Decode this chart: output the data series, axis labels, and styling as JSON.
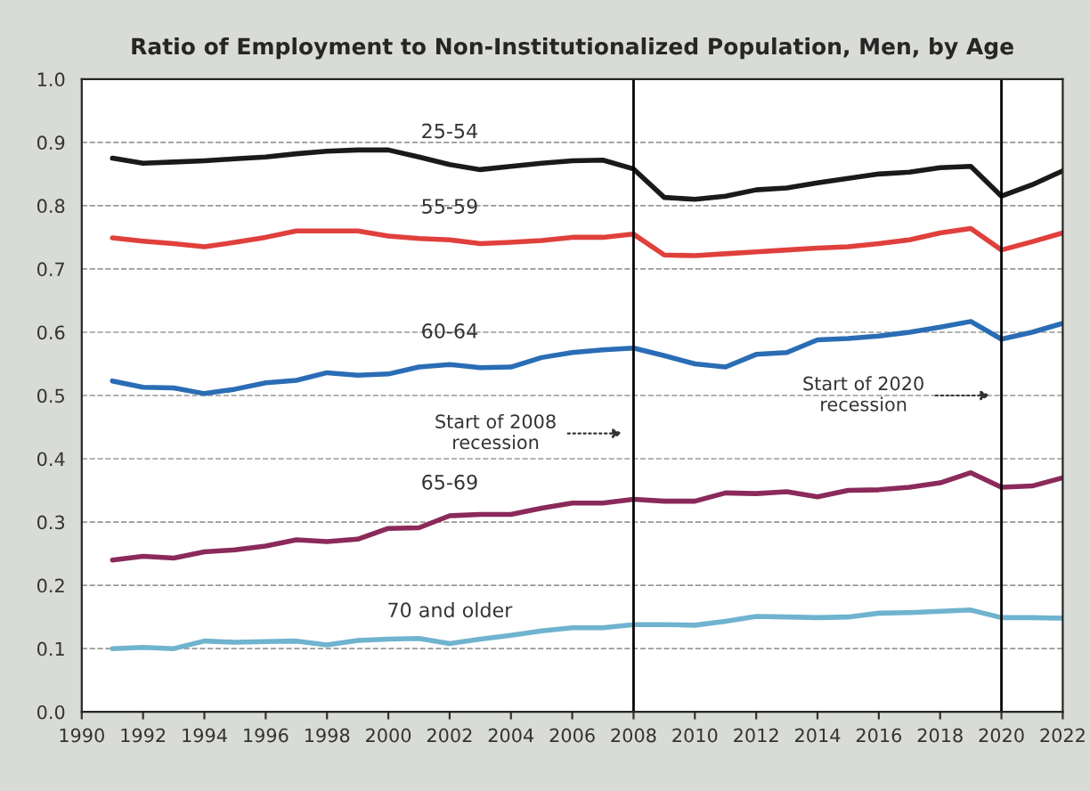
{
  "chart_data": {
    "type": "line",
    "title": "Ratio of Employment to Non-Institutionalized Population, Men, by Age",
    "x": [
      1991,
      1992,
      1993,
      1994,
      1995,
      1996,
      1997,
      1998,
      1999,
      2000,
      2001,
      2002,
      2003,
      2004,
      2005,
      2006,
      2007,
      2008,
      2009,
      2010,
      2011,
      2012,
      2013,
      2014,
      2015,
      2016,
      2017,
      2018,
      2019,
      2020,
      2021,
      2022
    ],
    "series": [
      {
        "name": "25-54",
        "color": "#1a1a1a",
        "values": [
          0.875,
          0.867,
          0.869,
          0.871,
          0.874,
          0.877,
          0.882,
          0.886,
          0.888,
          0.888,
          0.877,
          0.865,
          0.857,
          0.862,
          0.867,
          0.871,
          0.872,
          0.858,
          0.813,
          0.81,
          0.815,
          0.825,
          0.828,
          0.836,
          0.843,
          0.85,
          0.853,
          0.86,
          0.862,
          0.815,
          0.833,
          0.855
        ]
      },
      {
        "name": "55-59",
        "color": "#e0403c",
        "values": [
          0.749,
          0.744,
          0.74,
          0.735,
          0.742,
          0.75,
          0.76,
          0.76,
          0.76,
          0.752,
          0.748,
          0.746,
          0.74,
          0.742,
          0.745,
          0.75,
          0.75,
          0.755,
          0.722,
          0.721,
          0.724,
          0.727,
          0.73,
          0.733,
          0.735,
          0.74,
          0.746,
          0.757,
          0.764,
          0.73,
          0.743,
          0.757
        ]
      },
      {
        "name": "60-64",
        "color": "#2a6db5",
        "values": [
          0.523,
          0.513,
          0.512,
          0.503,
          0.51,
          0.52,
          0.524,
          0.536,
          0.532,
          0.534,
          0.545,
          0.549,
          0.544,
          0.545,
          0.56,
          0.568,
          0.572,
          0.575,
          0.563,
          0.55,
          0.545,
          0.565,
          0.568,
          0.588,
          0.59,
          0.594,
          0.6,
          0.608,
          0.617,
          0.589,
          0.6,
          0.614
        ]
      },
      {
        "name": "65-69",
        "color": "#8b2a5a",
        "values": [
          0.24,
          0.246,
          0.243,
          0.253,
          0.256,
          0.262,
          0.272,
          0.269,
          0.273,
          0.29,
          0.291,
          0.31,
          0.312,
          0.312,
          0.322,
          0.33,
          0.33,
          0.336,
          0.333,
          0.333,
          0.346,
          0.345,
          0.348,
          0.34,
          0.35,
          0.351,
          0.355,
          0.362,
          0.378,
          0.355,
          0.357,
          0.37
        ]
      },
      {
        "name": "70 and older",
        "color": "#6fb3cf",
        "values": [
          0.1,
          0.102,
          0.1,
          0.112,
          0.11,
          0.111,
          0.112,
          0.106,
          0.113,
          0.115,
          0.116,
          0.108,
          0.115,
          0.121,
          0.128,
          0.133,
          0.133,
          0.138,
          0.138,
          0.137,
          0.143,
          0.151,
          0.15,
          0.149,
          0.15,
          0.156,
          0.157,
          0.159,
          0.161,
          0.149,
          0.149,
          0.148
        ]
      }
    ],
    "ref_lines": [
      {
        "axis": "x",
        "value": 2008,
        "label": "Start of 2008\nrecession",
        "color": "#000000"
      },
      {
        "axis": "x",
        "value": 2020,
        "label": "Start of 2020\nrecession",
        "color": "#000000"
      }
    ],
    "xlim": [
      1990,
      2022
    ],
    "xticks": [
      1990,
      1992,
      1994,
      1996,
      1998,
      2000,
      2002,
      2004,
      2006,
      2008,
      2010,
      2012,
      2014,
      2016,
      2018,
      2020,
      2022
    ],
    "ylim": [
      0,
      1
    ],
    "yticks": [
      {
        "value": 0,
        "label": "0.0"
      },
      0.1,
      0.2,
      0.3,
      0.4,
      0.5,
      0.6,
      0.7,
      0.8,
      0.9,
      {
        "value": 1,
        "label": "1.0"
      }
    ],
    "grid": "y",
    "line_style": "solid",
    "marker": "none",
    "legend": false
  }
}
